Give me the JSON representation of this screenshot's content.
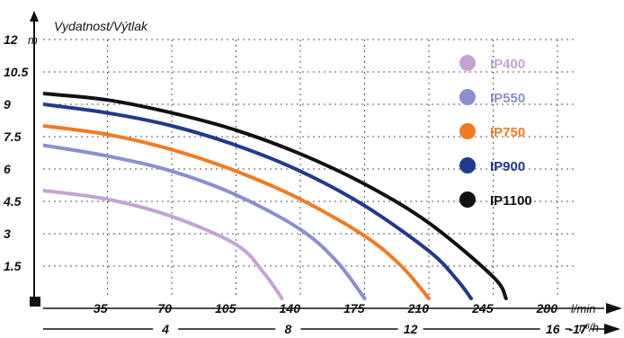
{
  "chart_data": {
    "type": "line",
    "title": "Vydatnost/Výtlak",
    "y_unit": "m",
    "x_unit": "l/min",
    "x2_unit": "m³/h",
    "ylim": [
      0,
      12
    ],
    "xlim": [
      0,
      280
    ],
    "y_ticks": [
      "12",
      "10.5",
      "9",
      "7.5",
      "6",
      "4.5",
      "3",
      "1.5"
    ],
    "x_ticks": [
      "35",
      "70",
      "105",
      "140",
      "175",
      "210",
      "245",
      "280"
    ],
    "x2_ticks": [
      "4",
      "8",
      "12",
      "16",
      "17"
    ],
    "grid": true,
    "legend_position": "right",
    "series": [
      {
        "name": "IP400",
        "color": "#c5a3d4",
        "x": [
          0,
          35,
          70,
          105,
          120,
          130
        ],
        "y": [
          5.0,
          4.6,
          3.8,
          2.5,
          1.2,
          0
        ]
      },
      {
        "name": "IP550",
        "color": "#8b8fd0",
        "x": [
          0,
          35,
          70,
          105,
          140,
          160,
          175
        ],
        "y": [
          7.1,
          6.6,
          5.9,
          4.8,
          3.2,
          1.7,
          0
        ]
      },
      {
        "name": "IP750",
        "color": "#f07b24",
        "x": [
          0,
          35,
          70,
          105,
          140,
          175,
          195,
          210
        ],
        "y": [
          8.0,
          7.6,
          6.9,
          5.9,
          4.6,
          2.9,
          1.5,
          0
        ]
      },
      {
        "name": "IP900",
        "color": "#223a8c",
        "x": [
          0,
          35,
          70,
          105,
          140,
          175,
          210,
          225,
          233
        ],
        "y": [
          9.0,
          8.6,
          8.0,
          7.1,
          5.9,
          4.3,
          2.2,
          0.9,
          0
        ]
      },
      {
        "name": "IP1100",
        "color": "#111111",
        "x": [
          0,
          35,
          70,
          105,
          140,
          175,
          210,
          245,
          252
        ],
        "y": [
          9.5,
          9.2,
          8.6,
          7.8,
          6.7,
          5.3,
          3.5,
          1.0,
          0
        ]
      }
    ]
  }
}
